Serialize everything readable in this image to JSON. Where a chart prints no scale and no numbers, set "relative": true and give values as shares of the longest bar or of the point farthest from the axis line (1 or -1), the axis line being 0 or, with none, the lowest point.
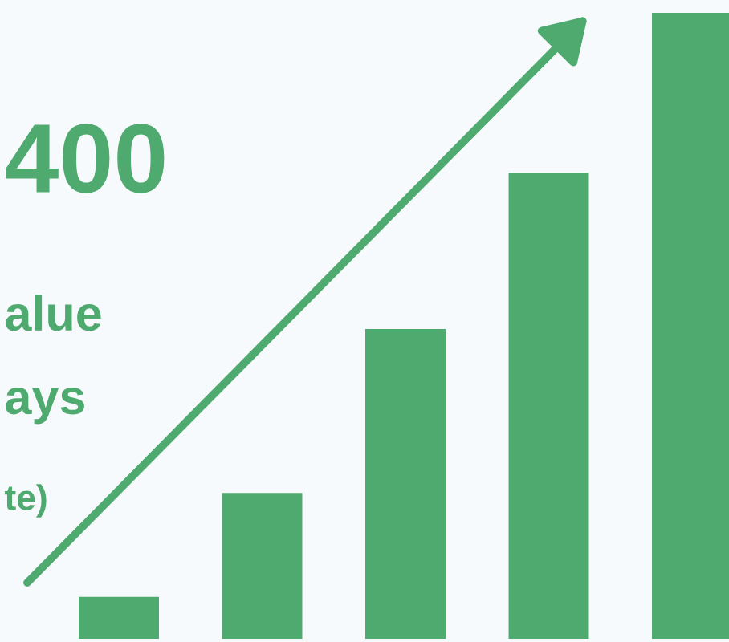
{
  "chart_data": {
    "type": "bar",
    "relative": true,
    "categories": [
      null,
      null,
      null,
      null,
      null
    ],
    "values": [
      0.067,
      0.233,
      0.495,
      0.744,
      1.0
    ],
    "color": "#4eaa6e",
    "annotations": [
      "400",
      "alue",
      "ays",
      "te)"
    ],
    "grid": false,
    "legend": false
  }
}
